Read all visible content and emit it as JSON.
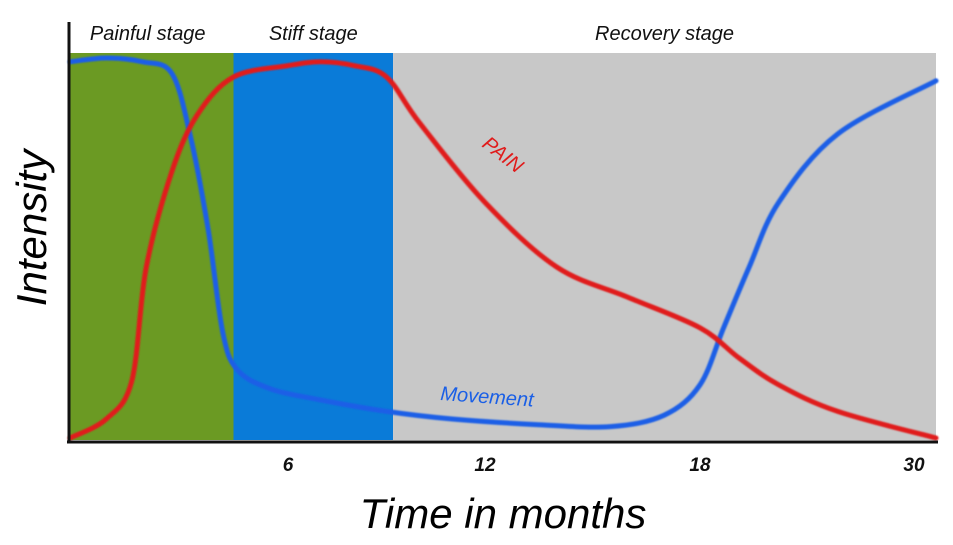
{
  "chart_data": {
    "type": "line",
    "title": "",
    "xlabel": "Time in months",
    "ylabel": "Intensity",
    "x_ticks": [
      {
        "label": "6",
        "value": 6
      },
      {
        "label": "12",
        "value": 12
      },
      {
        "label": "18",
        "value": 18
      },
      {
        "label": "30",
        "value": 30
      }
    ],
    "x_range_note": "x axis is non-linear: 6, 12, 18 evenly spaced then 30",
    "ylim": [
      0,
      100
    ],
    "stages": [
      {
        "name": "Painful stage",
        "start": 0,
        "end": 4.5,
        "color": "#6b9a23"
      },
      {
        "name": "Stiff stage",
        "start": 4.5,
        "end": 9.2,
        "color": "#0a7bd8"
      },
      {
        "name": "Recovery stage",
        "start": 9.2,
        "end": 30,
        "color": "#c8c8c8"
      }
    ],
    "series": [
      {
        "name": "PAIN",
        "color": "#e01b1b",
        "points": [
          [
            0,
            0
          ],
          [
            1,
            5
          ],
          [
            1.7,
            15
          ],
          [
            2.1,
            45
          ],
          [
            2.8,
            70
          ],
          [
            3.5,
            85
          ],
          [
            4.5,
            95
          ],
          [
            6,
            98
          ],
          [
            7,
            99
          ],
          [
            8,
            98
          ],
          [
            9,
            95
          ],
          [
            10,
            83
          ],
          [
            12,
            62
          ],
          [
            14,
            45
          ],
          [
            16,
            37
          ],
          [
            18,
            29
          ],
          [
            20,
            21
          ],
          [
            22,
            14
          ],
          [
            25,
            7
          ],
          [
            30,
            0
          ]
        ]
      },
      {
        "name": "Movement",
        "color": "#1a5fe6",
        "points": [
          [
            0,
            99
          ],
          [
            1,
            100
          ],
          [
            2,
            99
          ],
          [
            2.8,
            96
          ],
          [
            3.3,
            80
          ],
          [
            3.8,
            55
          ],
          [
            4.2,
            28
          ],
          [
            4.6,
            18
          ],
          [
            5.5,
            13
          ],
          [
            7,
            10
          ],
          [
            9,
            7
          ],
          [
            11,
            5
          ],
          [
            13.5,
            3.5
          ],
          [
            15.5,
            3
          ],
          [
            17,
            6
          ],
          [
            18,
            14
          ],
          [
            19.2,
            29
          ],
          [
            20.5,
            45
          ],
          [
            22,
            62
          ],
          [
            25,
            80
          ],
          [
            30,
            94
          ]
        ]
      }
    ],
    "grid": false,
    "legend": "none"
  }
}
